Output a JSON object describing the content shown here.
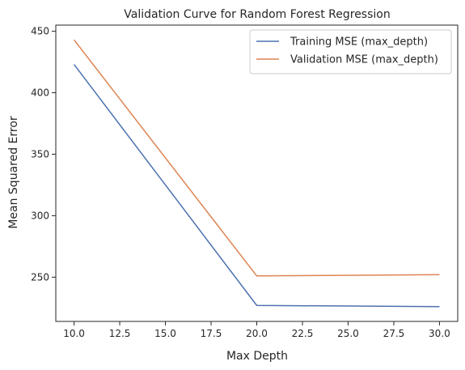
{
  "chart_data": {
    "type": "line",
    "title": "Validation Curve for Random Forest Regression",
    "xlabel": "Max Depth",
    "ylabel": "Mean Squared Error",
    "xlim": [
      9.0,
      31.0
    ],
    "ylim": [
      214.0,
      455.0
    ],
    "xticks": [
      10.0,
      12.5,
      15.0,
      17.5,
      20.0,
      22.5,
      25.0,
      27.5,
      30.0
    ],
    "xtick_labels": [
      "10.0",
      "12.5",
      "15.0",
      "17.5",
      "20.0",
      "22.5",
      "25.0",
      "27.5",
      "30.0"
    ],
    "yticks": [
      250,
      300,
      350,
      400,
      450
    ],
    "ytick_labels": [
      "250",
      "300",
      "350",
      "400",
      "450"
    ],
    "grid": false,
    "legend_position": "top-right",
    "x": [
      10,
      20,
      30
    ],
    "series": [
      {
        "name": "Training MSE (max_depth)",
        "color": "#4c72b0",
        "values": [
          423,
          227,
          226
        ]
      },
      {
        "name": "Validation MSE (max_depth)",
        "color": "#dd8452",
        "values": [
          443,
          251,
          252
        ]
      }
    ]
  }
}
